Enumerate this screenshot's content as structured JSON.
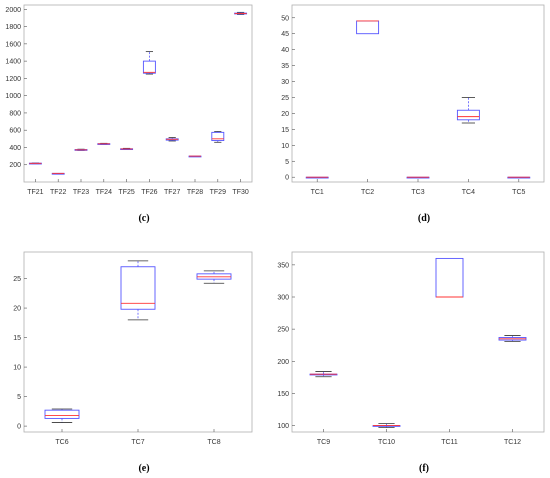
{
  "colors": {
    "box": "#5555ff",
    "median": "#ff3333",
    "frame": "#b0b0b0",
    "text": "#333333"
  },
  "chart_data": [
    {
      "id": "c",
      "type": "box",
      "caption": "(c)",
      "categories": [
        "TF21",
        "TF22",
        "TF23",
        "TF24",
        "TF25",
        "TF26",
        "TF27",
        "TF28",
        "TF29",
        "TF30"
      ],
      "ylim": [
        0,
        2050
      ],
      "yticks": [
        200,
        400,
        600,
        800,
        1000,
        1200,
        1400,
        1600,
        1800,
        2000
      ],
      "boxes": [
        {
          "min": 212,
          "q1": 214,
          "median": 216,
          "q3": 218,
          "max": 220
        },
        {
          "min": 100,
          "q1": 100,
          "median": 100,
          "q3": 100,
          "max": 100
        },
        {
          "min": 366,
          "q1": 370,
          "median": 372,
          "q3": 376,
          "max": 380
        },
        {
          "min": 436,
          "q1": 440,
          "median": 442,
          "q3": 444,
          "max": 448
        },
        {
          "min": 378,
          "q1": 381,
          "median": 383,
          "q3": 385,
          "max": 390
        },
        {
          "min": 1250,
          "q1": 1260,
          "median": 1270,
          "q3": 1400,
          "max": 1510
        },
        {
          "min": 475,
          "q1": 485,
          "median": 495,
          "q3": 500,
          "max": 515
        },
        {
          "min": 300,
          "q1": 300,
          "median": 300,
          "q3": 300,
          "max": 300
        },
        {
          "min": 460,
          "q1": 480,
          "median": 500,
          "q3": 575,
          "max": 585
        },
        {
          "min": 1940,
          "q1": 1948,
          "median": 1952,
          "q3": 1956,
          "max": 1965
        }
      ]
    },
    {
      "id": "d",
      "type": "box",
      "caption": "(d)",
      "categories": [
        "TC1",
        "TC2",
        "TC3",
        "TC4",
        "TC5"
      ],
      "ylim": [
        -1.5,
        54
      ],
      "yticks": [
        0,
        5,
        10,
        15,
        20,
        25,
        30,
        35,
        40,
        45,
        50
      ],
      "boxes": [
        {
          "min": 0,
          "q1": 0,
          "median": 0,
          "q3": 0,
          "max": 0
        },
        {
          "min": 45,
          "q1": 45,
          "median": 49,
          "q3": 49,
          "max": 49
        },
        {
          "min": 0,
          "q1": 0,
          "median": 0,
          "q3": 0,
          "max": 0
        },
        {
          "min": 17,
          "q1": 18,
          "median": 19,
          "q3": 21,
          "max": 25
        },
        {
          "min": 0,
          "q1": 0,
          "median": 0,
          "q3": 0,
          "max": 0
        }
      ]
    },
    {
      "id": "e",
      "type": "box",
      "caption": "(e)",
      "categories": [
        "TC6",
        "TC7",
        "TC8"
      ],
      "ylim": [
        -1,
        29.5
      ],
      "yticks": [
        0,
        5,
        10,
        15,
        20,
        25
      ],
      "boxes": [
        {
          "min": 0.6,
          "q1": 1.3,
          "median": 1.8,
          "q3": 2.7,
          "max": 2.9
        },
        {
          "min": 18,
          "q1": 19.8,
          "median": 20.8,
          "q3": 27,
          "max": 28
        },
        {
          "min": 24.2,
          "q1": 24.9,
          "median": 25.3,
          "q3": 25.8,
          "max": 26.3
        }
      ]
    },
    {
      "id": "f",
      "type": "box",
      "caption": "(f)",
      "categories": [
        "TC9",
        "TC10",
        "TC11",
        "TC12"
      ],
      "ylim": [
        90,
        370
      ],
      "yticks": [
        100,
        150,
        200,
        250,
        300,
        350
      ],
      "boxes": [
        {
          "min": 176,
          "q1": 180,
          "median": 180,
          "q3": 180,
          "max": 184
        },
        {
          "min": 97,
          "q1": 100,
          "median": 100,
          "q3": 100,
          "max": 103
        },
        {
          "min": 300,
          "q1": 300,
          "median": 300,
          "q3": 360,
          "max": 360
        },
        {
          "min": 231,
          "q1": 233,
          "median": 235,
          "q3": 237,
          "max": 240
        }
      ]
    }
  ]
}
